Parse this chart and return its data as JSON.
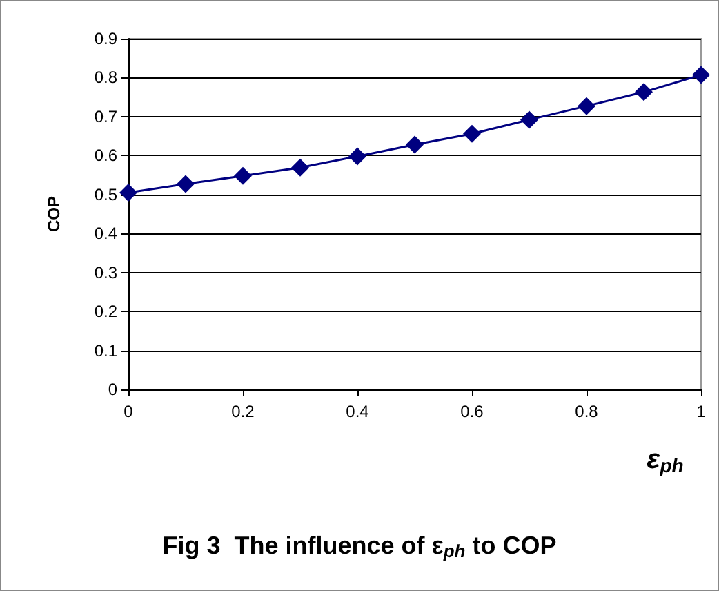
{
  "chart_data": {
    "type": "line",
    "title": "Fig 3  The influence of ε$_{ph}$ to COP",
    "xlabel": "ε$_{ph}$",
    "ylabel": "COP",
    "x": [
      0,
      0.1,
      0.2,
      0.3,
      0.4,
      0.5,
      0.6,
      0.7,
      0.8,
      0.9,
      1
    ],
    "series": [
      {
        "color": "#000080",
        "values": [
          0.505,
          0.527,
          0.548,
          0.569,
          0.598,
          0.628,
          0.656,
          0.692,
          0.727,
          0.763,
          0.807
        ]
      }
    ],
    "xlim": [
      0,
      1
    ],
    "xticks": [
      0,
      0.2,
      0.4,
      0.6,
      0.8,
      1
    ],
    "ylim": [
      0,
      0.9
    ],
    "yticks": [
      0,
      0.1,
      0.2,
      0.3,
      0.4,
      0.5,
      0.6,
      0.7,
      0.8,
      0.9
    ],
    "grid": "y",
    "marker": "diamond",
    "line_style": "solid"
  }
}
